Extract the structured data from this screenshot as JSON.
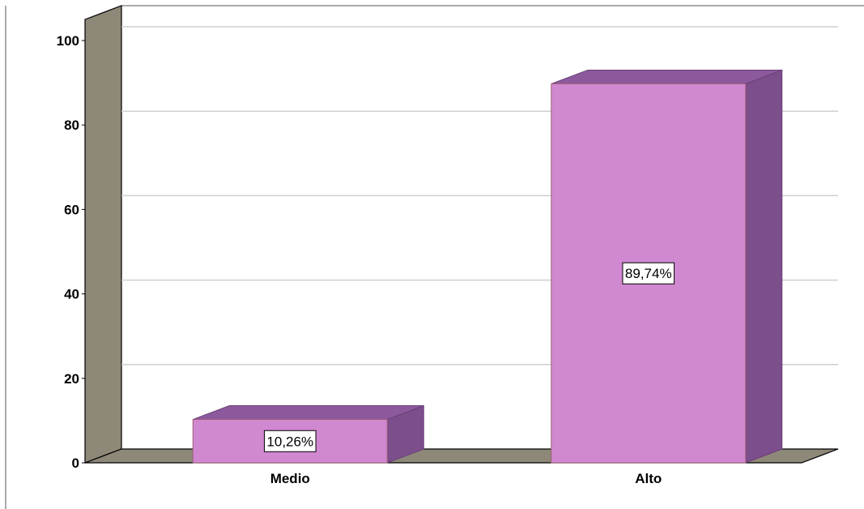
{
  "chart_data": {
    "type": "bar",
    "title": "",
    "xlabel": "",
    "ylabel": "",
    "categories": [
      "Medio",
      "Alto"
    ],
    "values": [
      10.26,
      89.74
    ],
    "data_labels": [
      "10,26%",
      "89,74%"
    ],
    "ylim": [
      0,
      100
    ],
    "yticks": [
      0,
      20,
      40,
      60,
      80,
      100
    ],
    "ytick_labels": [
      "0",
      "20",
      "40",
      "60",
      "80",
      "100"
    ],
    "grid": true,
    "three_d": true,
    "colors": {
      "bar_front": "#d088d0",
      "bar_side": "#7d4e8c",
      "bar_top": "#8c5a9c",
      "wall": "#8e8878",
      "floor": "#8e8878",
      "gridline": "#cfcfcf"
    }
  }
}
